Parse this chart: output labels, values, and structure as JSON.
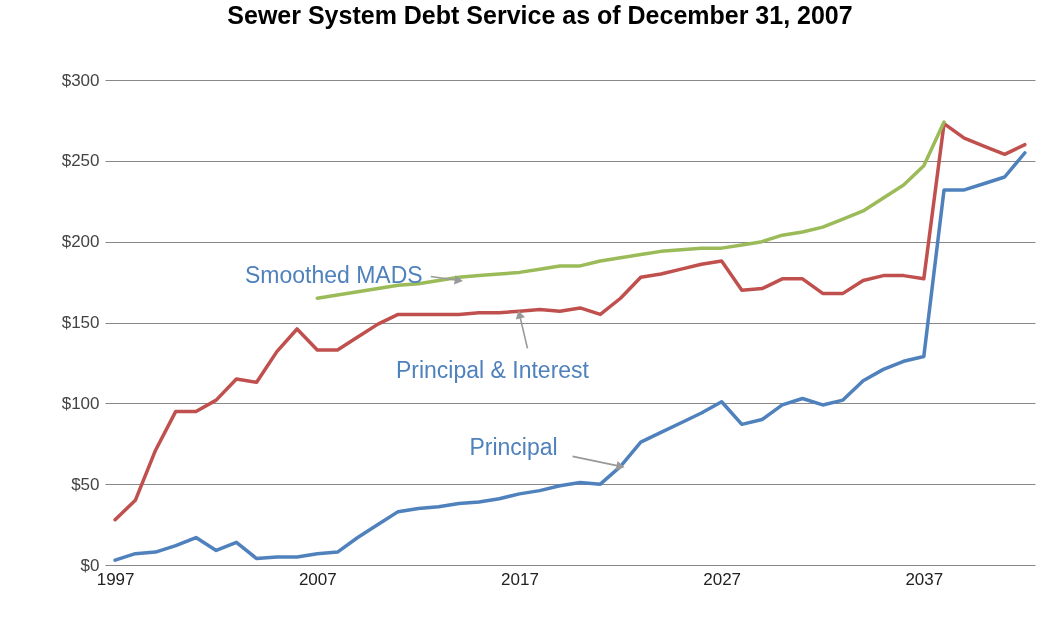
{
  "chart_data": {
    "type": "line",
    "title": "Sewer System Debt Service as of December 31, 2007",
    "x": [
      1997,
      1998,
      1999,
      2000,
      2001,
      2002,
      2003,
      2004,
      2005,
      2006,
      2007,
      2008,
      2009,
      2010,
      2011,
      2012,
      2013,
      2014,
      2015,
      2016,
      2017,
      2018,
      2019,
      2020,
      2021,
      2022,
      2023,
      2024,
      2025,
      2026,
      2027,
      2028,
      2029,
      2030,
      2031,
      2032,
      2033,
      2034,
      2035,
      2036,
      2037,
      2038,
      2039,
      2040,
      2041,
      2042
    ],
    "series": [
      {
        "color": "#c0504d",
        "values": [
          28,
          40,
          71,
          95,
          95,
          102,
          115,
          113,
          132,
          146,
          133,
          133,
          141,
          149,
          155,
          155,
          155,
          155,
          156,
          156,
          157,
          158,
          157,
          159,
          155,
          165,
          178,
          180,
          183,
          186,
          188,
          170,
          171,
          177,
          177,
          168,
          168,
          176,
          179,
          179,
          177,
          273,
          264,
          259,
          254,
          260
        ]
      },
      {
        "color": "#9bbb59",
        "values": [
          null,
          null,
          null,
          null,
          null,
          null,
          null,
          null,
          null,
          null,
          165,
          167,
          169,
          171,
          173,
          174,
          176,
          178,
          179,
          180,
          181,
          183,
          185,
          185,
          188,
          190,
          192,
          194,
          195,
          196,
          196,
          198,
          200,
          204,
          206,
          209,
          214,
          219,
          227,
          235,
          247,
          274,
          null,
          null,
          null,
          null
        ]
      },
      {
        "color": "#4f81bd",
        "values": [
          3,
          7,
          8,
          12,
          17,
          9,
          14,
          4,
          5,
          5,
          7,
          8,
          17,
          25,
          33,
          35,
          36,
          38,
          39,
          41,
          44,
          46,
          49,
          51,
          50,
          61,
          76,
          82,
          88,
          94,
          101,
          87,
          90,
          99,
          103,
          99,
          102,
          114,
          121,
          126,
          129,
          232,
          232,
          236,
          240,
          255
        ]
      }
    ],
    "xlim": [
      1996.5,
      2042.5
    ],
    "xticks": [
      1997,
      2007,
      2017,
      2027,
      2037
    ],
    "ylim": [
      0,
      300
    ],
    "yticks": [
      {
        "value": 0,
        "label": "$0"
      },
      {
        "value": 50,
        "label": "$50"
      },
      {
        "value": 100,
        "label": "$100"
      },
      {
        "value": 150,
        "label": "$150"
      },
      {
        "value": 200,
        "label": "$200"
      },
      {
        "value": 250,
        "label": "$250"
      },
      {
        "value": 300,
        "label": "$300"
      }
    ],
    "grid": "y",
    "line_style": "solid",
    "marker": "none",
    "annotations": [
      {
        "text": "Smoothed MADS",
        "x": 2014,
        "y": 176
      },
      {
        "text": "Principal & Interest",
        "x": 2017,
        "y": 155
      },
      {
        "text": "Principal",
        "x": 2022,
        "y": 61
      }
    ]
  }
}
